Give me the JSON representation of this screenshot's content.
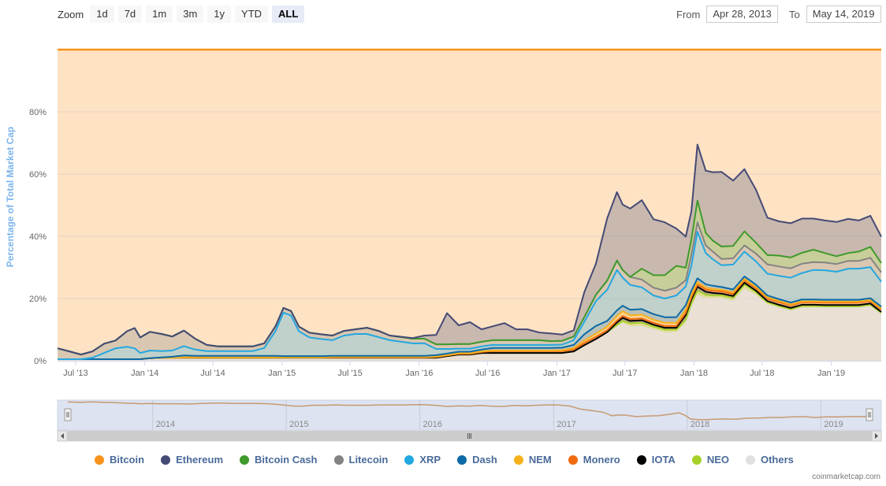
{
  "zoom": {
    "label": "Zoom",
    "buttons": [
      "1d",
      "7d",
      "1m",
      "3m",
      "1y",
      "YTD",
      "ALL"
    ],
    "active": "ALL"
  },
  "range": {
    "from_label": "From",
    "from_value": "Apr 28, 2013",
    "to_label": "To",
    "to_value": "May 14, 2019"
  },
  "credits": "coinmarketcap.com",
  "colors": {
    "background": "#fde2c4",
    "grid": "#e6d3c0",
    "navigator_mask": "#dde3f0",
    "axis_text": "#666666",
    "ytitle": "#7cb5ec"
  },
  "chart_data": {
    "type": "area",
    "stacking": "percent",
    "ylabel": "Percentage of Total Market Cap",
    "yticks": [
      0,
      20,
      40,
      60,
      80
    ],
    "ytick_labels": [
      "0%",
      "20%",
      "40%",
      "60%",
      "80%"
    ],
    "ylim": [
      0,
      100
    ],
    "xlim": [
      "2013-05-14",
      "2019-05-14"
    ],
    "xticks": [
      "2013-07-01",
      "2014-01-01",
      "2014-07-01",
      "2015-01-01",
      "2015-07-01",
      "2016-01-01",
      "2016-07-01",
      "2017-01-01",
      "2017-07-01",
      "2018-01-01",
      "2018-07-01",
      "2019-01-01"
    ],
    "xtick_labels": [
      "Jul '13",
      "Jan '14",
      "Jul '14",
      "Jan '15",
      "Jul '15",
      "Jan '16",
      "Jul '16",
      "Jan '17",
      "Jul '17",
      "Jan '18",
      "Jul '18",
      "Jan '19"
    ],
    "navigator_labels": [
      "2014",
      "2015",
      "2016",
      "2017",
      "2018",
      "2019"
    ],
    "navigator_ticks": [
      "2014-01-01",
      "2015-01-01",
      "2016-01-01",
      "2017-01-01",
      "2018-01-01",
      "2019-01-01"
    ],
    "legend_position": "bottom",
    "dates": [
      "2013-05-14",
      "2013-06-15",
      "2013-07-15",
      "2013-08-15",
      "2013-09-15",
      "2013-10-15",
      "2013-11-15",
      "2013-12-05",
      "2013-12-20",
      "2014-01-15",
      "2014-02-15",
      "2014-03-15",
      "2014-04-15",
      "2014-05-15",
      "2014-06-15",
      "2014-07-15",
      "2014-08-15",
      "2014-09-15",
      "2014-10-15",
      "2014-11-15",
      "2014-12-15",
      "2015-01-05",
      "2015-01-25",
      "2015-02-15",
      "2015-03-15",
      "2015-04-15",
      "2015-05-15",
      "2015-06-15",
      "2015-07-15",
      "2015-08-15",
      "2015-09-15",
      "2015-10-15",
      "2015-11-15",
      "2015-12-15",
      "2016-01-15",
      "2016-02-15",
      "2016-03-15",
      "2016-04-15",
      "2016-05-15",
      "2016-06-15",
      "2016-07-15",
      "2016-08-15",
      "2016-09-15",
      "2016-10-15",
      "2016-11-15",
      "2016-12-15",
      "2017-01-15",
      "2017-02-15",
      "2017-03-15",
      "2017-04-15",
      "2017-05-15",
      "2017-06-10",
      "2017-06-25",
      "2017-07-15",
      "2017-08-15",
      "2017-09-15",
      "2017-10-15",
      "2017-11-15",
      "2017-12-10",
      "2017-12-25",
      "2018-01-10",
      "2018-02-01",
      "2018-02-20",
      "2018-03-15",
      "2018-04-15",
      "2018-05-15",
      "2018-06-15",
      "2018-07-15",
      "2018-08-15",
      "2018-09-15",
      "2018-10-15",
      "2018-11-15",
      "2018-12-15",
      "2019-01-15",
      "2019-02-15",
      "2019-03-15",
      "2019-04-15",
      "2019-05-14"
    ],
    "series": [
      {
        "name": "Others",
        "color": "#e0e0e0",
        "values": [
          0.5,
          0.5,
          0.5,
          0.5,
          0.5,
          0.5,
          0.5,
          0.5,
          0.5,
          0.8,
          1.0,
          1.0,
          1.0,
          1.0,
          1.0,
          1.0,
          1.0,
          1.0,
          1.0,
          1.0,
          1.0,
          1.0,
          1.0,
          1.0,
          1.0,
          1.0,
          1.0,
          1.0,
          1.0,
          1.0,
          1.0,
          1.0,
          1.0,
          1.0,
          1.0,
          1.0,
          1.5,
          2.0,
          2.0,
          2.5,
          2.5,
          2.5,
          2.5,
          2.5,
          2.5,
          2.5,
          2.5,
          3.0,
          5.0,
          7.0,
          9.0,
          11.0,
          12.0,
          11.0,
          11.0,
          10.0,
          9.0,
          9.0,
          12.0,
          17.0,
          21.0,
          20.0,
          20.0,
          20.0,
          19.0,
          23.0,
          21.0,
          18.0,
          17.0,
          16.0,
          17.0,
          17.0,
          17.0,
          17.0,
          17.0,
          17.0,
          17.5,
          15.0
        ]
      },
      {
        "name": "NEO",
        "color": "#a6d12a",
        "values": [
          0,
          0,
          0,
          0,
          0,
          0,
          0,
          0,
          0,
          0,
          0,
          0,
          0,
          0,
          0,
          0,
          0,
          0,
          0,
          0,
          0,
          0,
          0,
          0,
          0,
          0,
          0,
          0,
          0,
          0,
          0,
          0,
          0,
          0,
          0,
          0,
          0,
          0,
          0,
          0,
          0,
          0,
          0,
          0,
          0,
          0,
          0,
          0,
          0,
          0,
          0.2,
          0.5,
          0.8,
          1.0,
          1.2,
          1.0,
          1.0,
          1.0,
          1.2,
          1.5,
          1.5,
          1.2,
          1.0,
          1.0,
          1.2,
          1.5,
          1.0,
          0.8,
          0.6,
          0.6,
          0.6,
          0.6,
          0.5,
          0.5,
          0.5,
          0.5,
          0.5,
          0.4
        ]
      },
      {
        "name": "IOTA",
        "color": "#000000",
        "values": [
          0,
          0,
          0,
          0,
          0,
          0,
          0,
          0,
          0,
          0,
          0,
          0,
          0,
          0,
          0,
          0,
          0,
          0,
          0,
          0,
          0,
          0,
          0,
          0,
          0,
          0,
          0,
          0,
          0,
          0,
          0,
          0,
          0,
          0,
          0,
          0,
          0,
          0,
          0,
          0,
          0,
          0,
          0,
          0,
          0,
          0,
          0,
          0,
          0,
          0,
          0,
          0.8,
          1.0,
          0.8,
          0.8,
          0.6,
          0.6,
          0.6,
          1.5,
          1.2,
          1.3,
          1.0,
          0.8,
          0.6,
          0.6,
          0.6,
          0.5,
          0.4,
          0.4,
          0.4,
          0.4,
          0.4,
          0.4,
          0.4,
          0.4,
          0.4,
          0.4,
          0.3
        ]
      },
      {
        "name": "Monero",
        "color": "#f26b0f",
        "values": [
          0,
          0,
          0,
          0,
          0,
          0,
          0,
          0,
          0,
          0,
          0,
          0,
          0.1,
          0.1,
          0.1,
          0.1,
          0.1,
          0.1,
          0.1,
          0.1,
          0.1,
          0.1,
          0.1,
          0.1,
          0.1,
          0.1,
          0.1,
          0.1,
          0.1,
          0.1,
          0.1,
          0.1,
          0.1,
          0.1,
          0.1,
          0.2,
          0.2,
          0.2,
          0.2,
          0.3,
          0.6,
          0.6,
          0.6,
          0.6,
          0.6,
          0.6,
          0.6,
          0.6,
          0.7,
          0.7,
          0.6,
          0.6,
          0.6,
          0.6,
          0.6,
          0.6,
          0.6,
          0.6,
          0.7,
          0.7,
          0.7,
          0.7,
          0.7,
          0.7,
          0.7,
          0.7,
          0.8,
          0.8,
          0.8,
          0.8,
          0.8,
          0.8,
          0.8,
          0.8,
          0.8,
          0.8,
          0.8,
          0.8
        ]
      },
      {
        "name": "NEM",
        "color": "#f7b11c",
        "values": [
          0,
          0,
          0,
          0,
          0,
          0,
          0,
          0,
          0,
          0,
          0,
          0,
          0,
          0,
          0,
          0,
          0,
          0,
          0,
          0,
          0,
          0,
          0,
          0,
          0,
          0,
          0.1,
          0.1,
          0.1,
          0.1,
          0.1,
          0.1,
          0.1,
          0.1,
          0.1,
          0.1,
          0.1,
          0.2,
          0.2,
          0.2,
          0.2,
          0.2,
          0.2,
          0.2,
          0.2,
          0.2,
          0.3,
          0.5,
          0.8,
          1.0,
          1.2,
          1.5,
          1.5,
          1.2,
          1.2,
          1.0,
          1.0,
          1.0,
          1.0,
          0.9,
          0.8,
          0.6,
          0.6,
          0.5,
          0.5,
          0.5,
          0.4,
          0.4,
          0.4,
          0.3,
          0.3,
          0.3,
          0.3,
          0.3,
          0.3,
          0.3,
          0.3,
          0.3
        ]
      },
      {
        "name": "Dash",
        "color": "#0c6aa6",
        "values": [
          0,
          0,
          0,
          0,
          0,
          0,
          0,
          0,
          0,
          0,
          0.1,
          0.3,
          0.6,
          0.5,
          0.5,
          0.5,
          0.5,
          0.5,
          0.5,
          0.5,
          0.5,
          0.4,
          0.4,
          0.4,
          0.4,
          0.4,
          0.4,
          0.4,
          0.4,
          0.4,
          0.4,
          0.4,
          0.4,
          0.4,
          0.4,
          0.5,
          0.5,
          0.5,
          0.5,
          0.6,
          0.8,
          0.8,
          0.8,
          0.8,
          0.8,
          0.8,
          0.8,
          1.0,
          2.0,
          2.5,
          1.8,
          1.8,
          1.8,
          1.8,
          1.8,
          1.8,
          1.8,
          1.8,
          1.5,
          1.2,
          1.2,
          1.1,
          1.0,
          0.9,
          0.9,
          0.8,
          0.7,
          0.6,
          0.6,
          0.6,
          0.6,
          0.6,
          0.6,
          0.6,
          0.6,
          0.6,
          0.6,
          0.6
        ]
      },
      {
        "name": "XRP",
        "color": "#23a7e0",
        "values": [
          0,
          0,
          0,
          0.5,
          2.0,
          3.5,
          4.0,
          3.5,
          2.0,
          2.5,
          2.0,
          2.0,
          3.0,
          2.0,
          1.5,
          1.5,
          1.5,
          1.5,
          1.5,
          2.5,
          8.0,
          14.0,
          13.0,
          8.0,
          6.0,
          5.5,
          5.0,
          6.5,
          7.0,
          7.0,
          6.0,
          5.0,
          4.5,
          4.0,
          4.0,
          2.0,
          1.5,
          1.0,
          1.0,
          1.0,
          1.0,
          1.0,
          1.0,
          1.0,
          1.0,
          1.0,
          1.0,
          1.5,
          4.0,
          8.0,
          10.0,
          13.0,
          9.0,
          8.0,
          7.0,
          6.0,
          6.0,
          7.0,
          6.0,
          8.0,
          15.0,
          10.0,
          8.5,
          7.0,
          8.0,
          8.0,
          7.5,
          7.0,
          7.5,
          8.0,
          8.5,
          9.5,
          9.5,
          9.0,
          10.0,
          10.0,
          10.0,
          8.0
        ]
      },
      {
        "name": "Litecoin",
        "color": "#838383",
        "values": [
          3.5,
          2.5,
          1.5,
          2.0,
          3.0,
          2.5,
          5.0,
          6.5,
          5.0,
          6.0,
          5.5,
          4.5,
          5.0,
          3.5,
          2.0,
          1.5,
          1.5,
          1.5,
          1.5,
          1.5,
          1.5,
          1.5,
          1.5,
          1.5,
          1.5,
          1.5,
          1.5,
          1.5,
          1.5,
          2.0,
          2.0,
          1.5,
          1.5,
          1.5,
          1.5,
          1.5,
          1.5,
          1.5,
          1.5,
          1.5,
          1.5,
          1.5,
          1.5,
          1.5,
          1.5,
          1.2,
          1.2,
          1.2,
          1.5,
          2.0,
          3.0,
          3.0,
          2.5,
          2.5,
          2.5,
          2.5,
          2.5,
          2.5,
          2.0,
          3.5,
          3.0,
          2.5,
          2.5,
          2.0,
          2.0,
          2.0,
          2.5,
          3.0,
          3.0,
          3.0,
          3.0,
          2.5,
          2.5,
          2.5,
          2.5,
          2.5,
          3.0,
          3.0
        ]
      },
      {
        "name": "Bitcoin Cash",
        "color": "#3f9a2c",
        "values": [
          0,
          0,
          0,
          0,
          0,
          0,
          0,
          0,
          0,
          0,
          0,
          0,
          0,
          0,
          0,
          0,
          0,
          0,
          0,
          0,
          0,
          0,
          0,
          0,
          0,
          0,
          0,
          0,
          0,
          0,
          0,
          0,
          0,
          0,
          0,
          0,
          0,
          0,
          0,
          0,
          0,
          0,
          0,
          0,
          0,
          0,
          0,
          0,
          0,
          0,
          0,
          0,
          0,
          0,
          3.5,
          4.0,
          5.0,
          7.0,
          4.0,
          5.0,
          7.0,
          4.0,
          3.5,
          4.0,
          4.0,
          4.5,
          3.5,
          3.0,
          3.5,
          3.5,
          3.5,
          4.0,
          3.0,
          2.5,
          2.5,
          3.0,
          3.5,
          3.0
        ]
      },
      {
        "name": "Ethereum",
        "color": "#454a75",
        "values": [
          0,
          0,
          0,
          0,
          0,
          0,
          0,
          0,
          0,
          0,
          0,
          0,
          0,
          0,
          0,
          0,
          0,
          0,
          0,
          0,
          0,
          0,
          0,
          0,
          0,
          0,
          0,
          0,
          0,
          0,
          0,
          0,
          0.1,
          0.2,
          1.0,
          3.0,
          10.0,
          6.0,
          7.0,
          4.0,
          4.5,
          5.5,
          3.5,
          3.5,
          2.5,
          2.5,
          2.0,
          2.0,
          8.0,
          10.0,
          20.0,
          22.0,
          21.0,
          22.0,
          22.0,
          18.0,
          17.0,
          12.0,
          10.0,
          9.0,
          18.0,
          20.0,
          22.0,
          24.0,
          21.0,
          20.0,
          17.0,
          12.0,
          11.0,
          11.0,
          11.0,
          10.0,
          10.5,
          11.0,
          11.0,
          10.0,
          10.0,
          8.5
        ]
      }
    ],
    "navigator_values": [
      94,
      93,
      94,
      93,
      92,
      90,
      89,
      88,
      89,
      88,
      88,
      88,
      87,
      89,
      90,
      90,
      89,
      89,
      89,
      88,
      85,
      82,
      80,
      80,
      83,
      83,
      84,
      83,
      83,
      83,
      84,
      84,
      84,
      85,
      85,
      82,
      79,
      81,
      80,
      82,
      80,
      79,
      82,
      81,
      83,
      84,
      84,
      80,
      70,
      65,
      60,
      48,
      50,
      50,
      45,
      47,
      48,
      53,
      58,
      50,
      37,
      35,
      35,
      36,
      37,
      36,
      40,
      40,
      42,
      42,
      44,
      45,
      42,
      44,
      44,
      45,
      45,
      45
    ]
  }
}
